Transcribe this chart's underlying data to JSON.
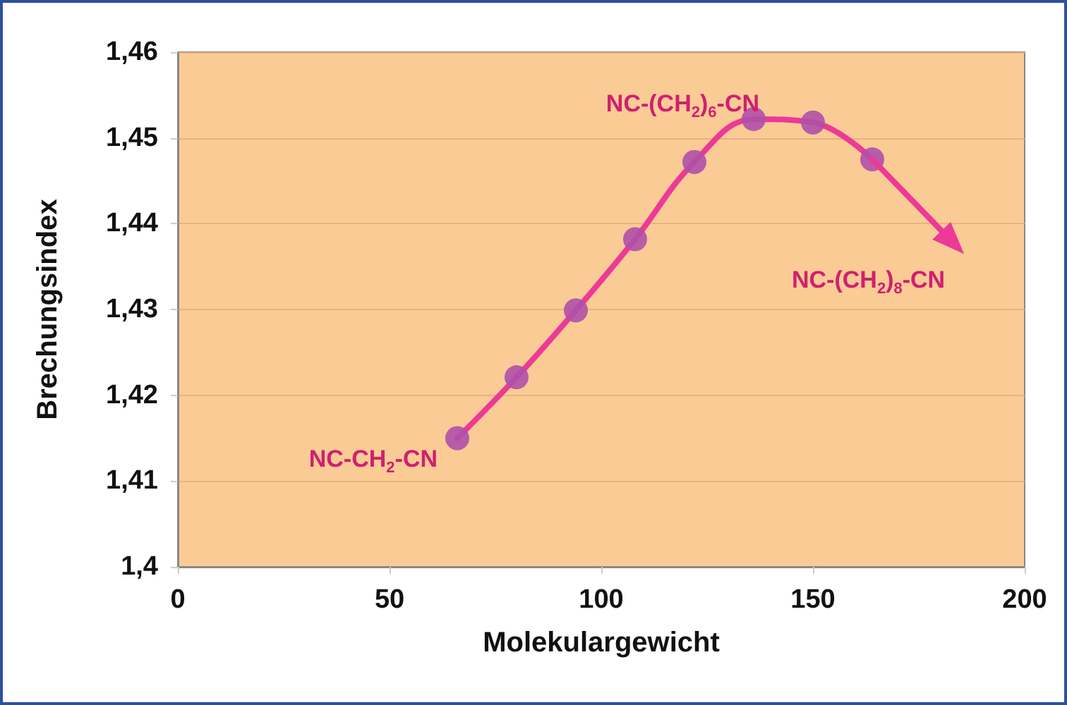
{
  "chart_data": {
    "type": "line",
    "xlabel": "Molekulargewicht",
    "ylabel": "Brechungsindex",
    "xlim": [
      0,
      200
    ],
    "xticks": [
      0,
      50,
      100,
      150,
      200
    ],
    "ylim": [
      1.4,
      1.46
    ],
    "yticks": [
      {
        "value": 1.4,
        "label": "1,4"
      },
      {
        "value": 1.41,
        "label": "1,41"
      },
      {
        "value": 1.42,
        "label": "1,42"
      },
      {
        "value": 1.43,
        "label": "1,43"
      },
      {
        "value": 1.44,
        "label": "1,44"
      },
      {
        "value": 1.45,
        "label": "1,45"
      },
      {
        "value": 1.46,
        "label": "1,46"
      }
    ],
    "grid": "y",
    "marker": "circle",
    "series": [
      {
        "color": "#ec3a96",
        "line_style": "solid",
        "marker": "none",
        "x": [
          66,
          80,
          94,
          108,
          122,
          136,
          150,
          164
        ],
        "values": [
          1.415,
          1.4221,
          1.4299,
          1.4382,
          1.4472,
          1.4522,
          1.4518,
          1.4475
        ]
      },
      {
        "type": "scatter",
        "color": "#b050a8",
        "x": [
          66,
          80,
          94,
          108,
          122,
          136,
          150,
          164
        ],
        "values": [
          1.415,
          1.4221,
          1.4299,
          1.4382,
          1.4472,
          1.4522,
          1.4518,
          1.4475
        ]
      }
    ],
    "annotations": [
      {
        "text": "NC-CH$_{2}$-CN",
        "x": 66,
        "y": 1.415
      },
      {
        "text": "NC-(CH$_{2}$)$_{6}$-CN",
        "x": 136,
        "y": 1.4522
      },
      {
        "text": "NC-(CH$_{2}$)$_{8}$-CN",
        "x": 164,
        "y": 1.4475
      }
    ]
  }
}
